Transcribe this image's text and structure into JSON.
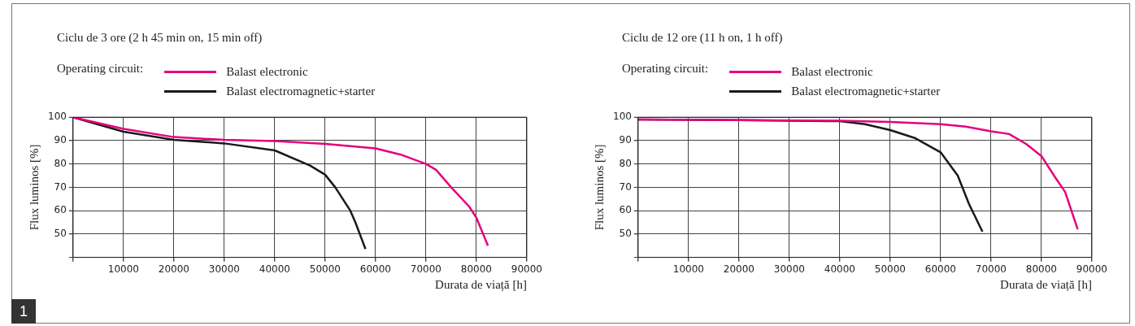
{
  "chart_data": [
    {
      "type": "line",
      "title": "Ciclu de 3 ore  (2 h 45 min on, 15 min off)",
      "legend_title": "Operating circuit:",
      "legend": "top left",
      "xlabel": "Durata de viață [h]",
      "ylabel": "Flux luminos [%]",
      "grid": true,
      "marker": "none",
      "line_style": "solid",
      "xlim": [
        0,
        90000
      ],
      "xticks": [
        {
          "value": 0,
          "label": null
        },
        10000,
        20000,
        30000,
        40000,
        50000,
        60000,
        70000,
        80000,
        90000
      ],
      "ylim": [
        40,
        100
      ],
      "yticks": [
        {
          "value": 40,
          "label": null
        },
        50,
        60,
        70,
        80,
        90,
        100
      ],
      "annotations": [
        "1"
      ],
      "series": [
        {
          "name": "Balast electronic",
          "color": "#e6007e",
          "x": [
            0,
            10000,
            20000,
            30000,
            40000,
            50000,
            60000,
            65000,
            70000,
            72000,
            75000,
            78600,
            80000,
            82300
          ],
          "values": [
            100,
            95,
            91.5,
            90.3,
            89.8,
            88.6,
            86.7,
            84,
            80,
            77.5,
            70,
            61.7,
            57,
            45
          ]
        },
        {
          "name": "Balast electromagnetic+starter",
          "color": "#1a1a1a",
          "x": [
            0,
            10000,
            20000,
            30000,
            40000,
            47000,
            50000,
            52000,
            55000,
            56000,
            58000
          ],
          "values": [
            100,
            93.8,
            90.3,
            88.8,
            85.8,
            79.3,
            75.4,
            70,
            60,
            55,
            43.6
          ]
        }
      ]
    },
    {
      "type": "line",
      "title": "Ciclu de 12 ore  (11 h on, 1 h off)",
      "legend_title": "Operating circuit:",
      "legend": "top left",
      "xlabel": "Durata de viață [h]",
      "ylabel": "Flux luminos [%]",
      "grid": true,
      "marker": "none",
      "line_style": "solid",
      "xlim": [
        0,
        90000
      ],
      "xticks": [
        {
          "value": 0,
          "label": null
        },
        10000,
        20000,
        30000,
        40000,
        50000,
        60000,
        70000,
        80000,
        90000
      ],
      "ylim": [
        40,
        100
      ],
      "yticks": [
        {
          "value": 40,
          "label": null
        },
        50,
        60,
        70,
        80,
        90,
        100
      ],
      "series": [
        {
          "name": "Balast electronic",
          "color": "#e6007e",
          "x": [
            0,
            20000,
            40000,
            50000,
            60000,
            65000,
            70000,
            73600,
            77000,
            80000,
            82500,
            84700,
            87200
          ],
          "values": [
            99,
            98.8,
            98.5,
            98,
            97,
            96,
            94,
            92.8,
            88.5,
            83.4,
            75,
            68,
            52
          ]
        },
        {
          "name": "Balast electromagnetic+starter",
          "color": "#1a1a1a",
          "x": [
            0,
            20000,
            40000,
            45000,
            50000,
            55000,
            60000,
            63400,
            65600,
            68300
          ],
          "values": [
            99,
            98.8,
            98.3,
            97,
            94.5,
            91,
            85,
            75,
            63,
            51
          ]
        }
      ]
    }
  ]
}
